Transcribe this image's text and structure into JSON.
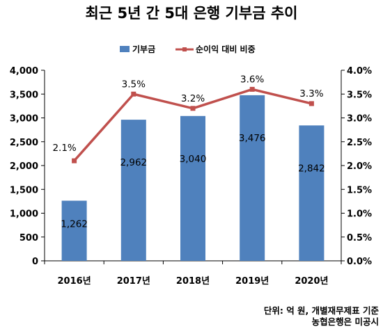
{
  "chart_data": {
    "type": "bar+line",
    "title": "최근 5년 간 5대 은행 기부금 추이",
    "categories": [
      "2016년",
      "2017년",
      "2018년",
      "2019년",
      "2020년"
    ],
    "series": [
      {
        "name": "기부금",
        "type": "bar",
        "axis": "left",
        "values": [
          1262,
          2962,
          3040,
          3476,
          2842
        ],
        "labels": [
          "1,262",
          "2,962",
          "3,040",
          "3,476",
          "2,842"
        ],
        "color": "#4f81bd"
      },
      {
        "name": "순이익 대비 비중",
        "type": "line",
        "axis": "right",
        "values": [
          2.1,
          3.5,
          3.2,
          3.6,
          3.3
        ],
        "labels": [
          "2.1%",
          "3.5%",
          "3.2%",
          "3.6%",
          "3.3%"
        ],
        "color": "#c0504d"
      }
    ],
    "y_left": {
      "min": 0,
      "max": 4000,
      "ticks": [
        0,
        500,
        1000,
        1500,
        2000,
        2500,
        3000,
        3500,
        4000
      ],
      "tick_labels": [
        "0",
        "500",
        "1,000",
        "1,500",
        "2,000",
        "2,500",
        "3,000",
        "3,500",
        "4,000"
      ]
    },
    "y_right": {
      "min": 0,
      "max": 4.0,
      "ticks": [
        0,
        0.5,
        1.0,
        1.5,
        2.0,
        2.5,
        3.0,
        3.5,
        4.0
      ],
      "tick_labels": [
        "0.0%",
        "0.5%",
        "1.0%",
        "1.5%",
        "2.0%",
        "2.5%",
        "3.0%",
        "3.5%",
        "4.0%"
      ]
    },
    "legend_position": "top",
    "grid": false,
    "source_lines": [
      "단위: 억 원, 개별재무제표 기준",
      "농협은행은 미공시"
    ]
  }
}
